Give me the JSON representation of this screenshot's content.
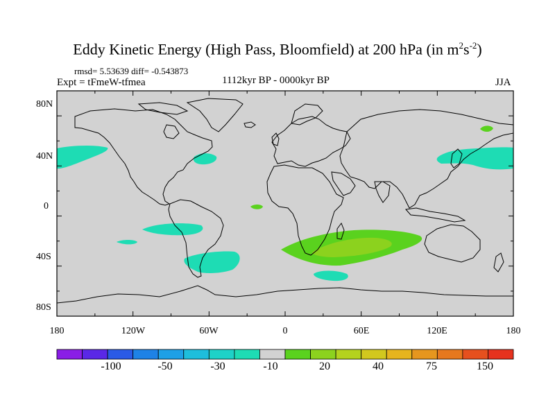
{
  "title": {
    "text": "Eddy Kinetic Energy (High Pass, Bloomfield) at 200 hPa (in m",
    "sup1": "2",
    "mid": "s",
    "sup2": "-2",
    "close": ")"
  },
  "stats": "rmsd= 5.53639 diff= -0.543873",
  "expt": "Expt = tFmeW-tfmea",
  "period": "1112kyr BP - 0000kyr BP",
  "season": "JJA",
  "lat_labels": [
    "80N",
    "40N",
    "0",
    "40S",
    "80S"
  ],
  "lon_labels": [
    "180",
    "120W",
    "60W",
    "0",
    "60E",
    "120E",
    "180"
  ],
  "colorbar": {
    "colors": [
      "#8a1ee6",
      "#5a28e6",
      "#2a5ae6",
      "#1e82e6",
      "#1ea0e6",
      "#1ebedc",
      "#1ed2c8",
      "#1edcb4",
      "#d2d2d2",
      "#5ad21e",
      "#8cd21e",
      "#b4d21e",
      "#d2c81e",
      "#e6b41e",
      "#e6961e",
      "#e6781e",
      "#e6501e",
      "#e6321e"
    ],
    "labels": [
      "-100",
      "-50",
      "-30",
      "-10",
      "20",
      "40",
      "75",
      "150"
    ]
  },
  "map_colors": {
    "background": "#d2d2d2",
    "cyan": "#1edcb4",
    "green": "#5ad21e",
    "lime": "#8cd21e",
    "coast": "#000000"
  }
}
